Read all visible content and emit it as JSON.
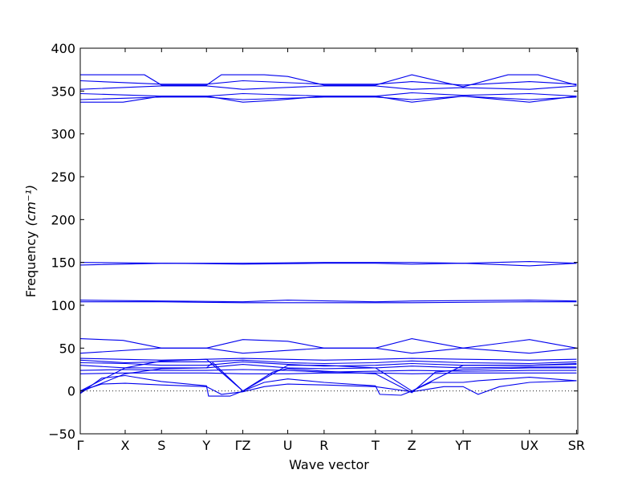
{
  "chart_data": {
    "type": "line",
    "title": "",
    "xlabel": "Wave vector",
    "ylabel": "Frequency",
    "ylabel_unit": "(cm⁻¹)",
    "ylim": [
      -50,
      400
    ],
    "yticks": [
      -50,
      0,
      50,
      100,
      150,
      200,
      250,
      300,
      350,
      400
    ],
    "ytick_labels": [
      "−50",
      "0",
      "50",
      "100",
      "150",
      "200",
      "250",
      "300",
      "350",
      "400"
    ],
    "xlim": [
      0,
      11.63
    ],
    "xticks": [
      {
        "label": "Γ",
        "x": 0
      },
      {
        "label": "X",
        "x": 1.05
      },
      {
        "label": "S",
        "x": 1.9
      },
      {
        "label": "Y",
        "x": 2.95
      },
      {
        "label": "ΓZ",
        "x": 3.8
      },
      {
        "label": "U",
        "x": 4.85
      },
      {
        "label": "R",
        "x": 5.7
      },
      {
        "label": "T",
        "x": 6.9
      },
      {
        "label": "Z",
        "x": 7.75
      },
      {
        "label": "YT",
        "x": 8.95
      },
      {
        "label": "UX",
        "x": 10.5
      },
      {
        "label": "SR",
        "x": 11.6
      }
    ],
    "line_color": "#0000ee",
    "grid": false,
    "zero_line": "dotted",
    "series": [
      {
        "points": [
          [
            0,
            369
          ],
          [
            1.5,
            369
          ],
          [
            1.9,
            357
          ],
          [
            2.95,
            357
          ],
          [
            3.3,
            369
          ],
          [
            4.3,
            369
          ],
          [
            4.85,
            367
          ],
          [
            5.7,
            357
          ],
          [
            6.9,
            357
          ],
          [
            7.75,
            369
          ],
          [
            8.95,
            355
          ],
          [
            10.0,
            369
          ],
          [
            10.7,
            369
          ],
          [
            11.6,
            357
          ]
        ]
      },
      {
        "points": [
          [
            0,
            362
          ],
          [
            1.9,
            358
          ],
          [
            2.95,
            358
          ],
          [
            3.8,
            362
          ],
          [
            5.7,
            358
          ],
          [
            6.9,
            358
          ],
          [
            7.75,
            361
          ],
          [
            8.95,
            357
          ],
          [
            10.5,
            361
          ],
          [
            11.6,
            358
          ]
        ]
      },
      {
        "points": [
          [
            0,
            352
          ],
          [
            1.9,
            356
          ],
          [
            2.95,
            356
          ],
          [
            3.8,
            352
          ],
          [
            5.7,
            356
          ],
          [
            6.9,
            356
          ],
          [
            7.75,
            352
          ],
          [
            8.95,
            354
          ],
          [
            10.5,
            352
          ],
          [
            11.6,
            356
          ]
        ]
      },
      {
        "points": [
          [
            0,
            347
          ],
          [
            1.9,
            344
          ],
          [
            2.95,
            344
          ],
          [
            3.8,
            347
          ],
          [
            5.7,
            344
          ],
          [
            6.9,
            344
          ],
          [
            7.75,
            348
          ],
          [
            8.95,
            345
          ],
          [
            10.5,
            347
          ],
          [
            11.6,
            344
          ]
        ]
      },
      {
        "points": [
          [
            0,
            340
          ],
          [
            1.9,
            343
          ],
          [
            2.95,
            343
          ],
          [
            3.8,
            340
          ],
          [
            5.7,
            343
          ],
          [
            6.9,
            343
          ],
          [
            7.75,
            340
          ],
          [
            8.95,
            344
          ],
          [
            10.5,
            340
          ],
          [
            11.6,
            343
          ]
        ]
      },
      {
        "points": [
          [
            0,
            337
          ],
          [
            1.0,
            337
          ],
          [
            1.9,
            344
          ],
          [
            2.95,
            344
          ],
          [
            3.8,
            337
          ],
          [
            4.5,
            339
          ],
          [
            5.7,
            344
          ],
          [
            6.9,
            344
          ],
          [
            7.75,
            337
          ],
          [
            8.95,
            344
          ],
          [
            10.5,
            337
          ],
          [
            11.6,
            344
          ]
        ]
      },
      {
        "points": [
          [
            0,
            150
          ],
          [
            2.0,
            149
          ],
          [
            3.8,
            149
          ],
          [
            5.7,
            150
          ],
          [
            6.9,
            150
          ],
          [
            7.75,
            150
          ],
          [
            8.95,
            149
          ],
          [
            10.5,
            151
          ],
          [
            11.6,
            149
          ]
        ]
      },
      {
        "points": [
          [
            0,
            147
          ],
          [
            2.0,
            149
          ],
          [
            3.8,
            148
          ],
          [
            5.7,
            149
          ],
          [
            6.9,
            149
          ],
          [
            7.75,
            148
          ],
          [
            8.95,
            149
          ],
          [
            10.5,
            146
          ],
          [
            11.6,
            149
          ]
        ]
      },
      {
        "points": [
          [
            0,
            106
          ],
          [
            1.9,
            105
          ],
          [
            3.8,
            104
          ],
          [
            4.85,
            106
          ],
          [
            6.9,
            104
          ],
          [
            7.75,
            105
          ],
          [
            10.5,
            106
          ],
          [
            11.6,
            105
          ]
        ]
      },
      {
        "points": [
          [
            0,
            104
          ],
          [
            1.9,
            104
          ],
          [
            3.8,
            103
          ],
          [
            4.85,
            103
          ],
          [
            6.9,
            103
          ],
          [
            7.75,
            103
          ],
          [
            10.5,
            104
          ],
          [
            11.6,
            104
          ]
        ]
      },
      {
        "points": [
          [
            0,
            61
          ],
          [
            1.0,
            59
          ],
          [
            1.9,
            50
          ],
          [
            2.95,
            50
          ],
          [
            3.8,
            60
          ],
          [
            4.85,
            58
          ],
          [
            5.7,
            50
          ],
          [
            6.9,
            50
          ],
          [
            7.75,
            61
          ],
          [
            8.95,
            50
          ],
          [
            10.5,
            60
          ],
          [
            11.6,
            50
          ]
        ]
      },
      {
        "points": [
          [
            0,
            44
          ],
          [
            1.9,
            50
          ],
          [
            2.95,
            50
          ],
          [
            3.8,
            44
          ],
          [
            5.7,
            50
          ],
          [
            6.9,
            50
          ],
          [
            7.75,
            44
          ],
          [
            8.95,
            50
          ],
          [
            10.5,
            44
          ],
          [
            11.6,
            50
          ]
        ]
      },
      {
        "points": [
          [
            0,
            38
          ],
          [
            1.9,
            36
          ],
          [
            2.95,
            37
          ],
          [
            3.8,
            38
          ],
          [
            5.7,
            36
          ],
          [
            6.9,
            37
          ],
          [
            7.75,
            38
          ],
          [
            8.95,
            37
          ],
          [
            10.5,
            36
          ],
          [
            11.6,
            37
          ]
        ]
      },
      {
        "points": [
          [
            0,
            36
          ],
          [
            1.05,
            33
          ],
          [
            1.9,
            34
          ],
          [
            2.95,
            34
          ],
          [
            3.8,
            36
          ],
          [
            4.85,
            33
          ],
          [
            5.7,
            32
          ],
          [
            6.9,
            33
          ],
          [
            7.75,
            35
          ],
          [
            8.95,
            33
          ],
          [
            10.5,
            32
          ],
          [
            11.6,
            34
          ]
        ]
      },
      {
        "points": [
          [
            0,
            33
          ],
          [
            1.05,
            32
          ],
          [
            1.9,
            30
          ],
          [
            2.95,
            30
          ],
          [
            3.8,
            34
          ],
          [
            4.85,
            31
          ],
          [
            5.7,
            29
          ],
          [
            6.9,
            30
          ],
          [
            7.75,
            32
          ],
          [
            8.95,
            30
          ],
          [
            10.5,
            30
          ],
          [
            11.6,
            31
          ]
        ]
      },
      {
        "points": [
          [
            0,
            30
          ],
          [
            1.05,
            27
          ],
          [
            1.9,
            27
          ],
          [
            2.95,
            27
          ],
          [
            3.8,
            31
          ],
          [
            4.85,
            27
          ],
          [
            5.7,
            26
          ],
          [
            6.9,
            27
          ],
          [
            7.75,
            29
          ],
          [
            8.95,
            27
          ],
          [
            10.5,
            28
          ],
          [
            11.6,
            28
          ]
        ]
      },
      {
        "points": [
          [
            0,
            24
          ],
          [
            1.05,
            25
          ],
          [
            1.9,
            24
          ],
          [
            2.95,
            24
          ],
          [
            3.8,
            25
          ],
          [
            4.85,
            24
          ],
          [
            5.7,
            22
          ],
          [
            6.9,
            23
          ],
          [
            7.75,
            24
          ],
          [
            8.95,
            23
          ],
          [
            10.5,
            24
          ],
          [
            11.6,
            24
          ]
        ]
      },
      {
        "points": [
          [
            0,
            20
          ],
          [
            1.05,
            21
          ],
          [
            1.9,
            21
          ],
          [
            2.95,
            21
          ],
          [
            3.8,
            20
          ],
          [
            4.85,
            20
          ],
          [
            5.7,
            21
          ],
          [
            6.9,
            21
          ],
          [
            7.75,
            20
          ],
          [
            8.95,
            21
          ],
          [
            10.5,
            21
          ],
          [
            11.6,
            21
          ]
        ]
      },
      {
        "points": [
          [
            0,
            -3
          ],
          [
            0.5,
            15
          ],
          [
            1.05,
            18
          ],
          [
            1.9,
            11
          ],
          [
            2.95,
            6
          ],
          [
            3.0,
            -6
          ],
          [
            3.5,
            -6
          ],
          [
            3.8,
            0
          ],
          [
            4.3,
            10
          ],
          [
            4.85,
            14
          ],
          [
            5.7,
            10
          ],
          [
            6.9,
            6
          ],
          [
            7.0,
            -4
          ],
          [
            7.5,
            -5
          ],
          [
            7.75,
            0
          ],
          [
            8.2,
            10
          ],
          [
            8.95,
            10
          ],
          [
            9.3,
            12
          ],
          [
            10.5,
            16
          ],
          [
            11.6,
            12
          ]
        ]
      },
      {
        "points": [
          [
            0,
            0
          ],
          [
            0.5,
            8
          ],
          [
            1.05,
            9
          ],
          [
            1.9,
            7
          ],
          [
            2.95,
            5
          ],
          [
            3.3,
            -4
          ],
          [
            3.8,
            -1
          ],
          [
            4.3,
            5
          ],
          [
            4.85,
            8
          ],
          [
            5.7,
            7
          ],
          [
            6.9,
            5
          ],
          [
            7.75,
            -1
          ],
          [
            8.5,
            5
          ],
          [
            8.95,
            5
          ],
          [
            9.3,
            -4
          ],
          [
            9.8,
            5
          ],
          [
            10.5,
            10
          ],
          [
            11.6,
            12
          ]
        ]
      },
      {
        "points": [
          [
            0,
            -2
          ],
          [
            0.2,
            3
          ],
          [
            1.05,
            20
          ],
          [
            1.9,
            26
          ],
          [
            2.95,
            27
          ],
          [
            3.1,
            33
          ],
          [
            3.8,
            0
          ],
          [
            4.5,
            22
          ],
          [
            4.85,
            26
          ],
          [
            5.7,
            23
          ],
          [
            6.9,
            20
          ],
          [
            7.75,
            -2
          ],
          [
            8.3,
            22
          ],
          [
            8.95,
            25
          ],
          [
            10.5,
            27
          ],
          [
            11.6,
            27
          ]
        ]
      },
      {
        "points": [
          [
            0,
            0
          ],
          [
            1.05,
            27
          ],
          [
            1.9,
            35
          ],
          [
            2.95,
            37
          ],
          [
            3.8,
            0
          ],
          [
            4.85,
            30
          ],
          [
            5.7,
            30
          ],
          [
            6.9,
            27
          ],
          [
            7.75,
            0
          ],
          [
            8.95,
            30
          ],
          [
            10.5,
            30
          ],
          [
            11.6,
            32
          ]
        ]
      }
    ]
  }
}
